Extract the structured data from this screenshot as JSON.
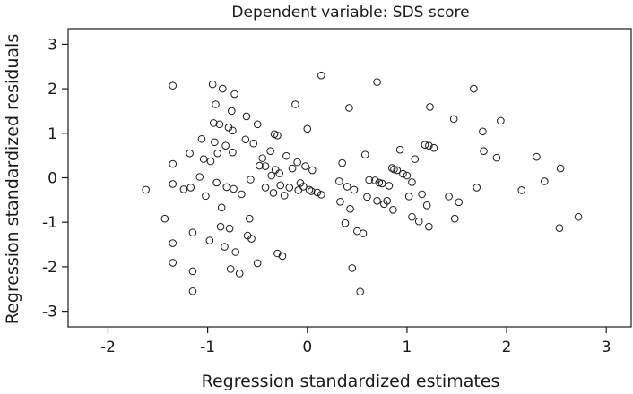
{
  "chart_data": {
    "type": "scatter",
    "title": "Dependent variable: SDS score",
    "xlabel": "Regression standardized estimates",
    "ylabel": "Regression standardized residuals",
    "xlim": [
      -2.4,
      3.25
    ],
    "ylim": [
      -3.35,
      3.35
    ],
    "xticks": [
      -2,
      -1,
      0,
      1,
      2,
      3
    ],
    "yticks": [
      -3,
      -2,
      -1,
      0,
      1,
      2,
      3
    ],
    "grid": false,
    "marker": "open-circle",
    "points": [
      [
        -1.62,
        -0.27
      ],
      [
        -1.43,
        -0.92
      ],
      [
        -1.35,
        2.07
      ],
      [
        -1.35,
        0.31
      ],
      [
        -1.35,
        -0.14
      ],
      [
        -1.35,
        -1.47
      ],
      [
        -1.35,
        -1.91
      ],
      [
        -1.24,
        -0.26
      ],
      [
        -1.18,
        0.55
      ],
      [
        -1.17,
        -0.22
      ],
      [
        -1.15,
        -1.23
      ],
      [
        -1.15,
        -2.1
      ],
      [
        -1.15,
        -2.55
      ],
      [
        -1.08,
        0.02
      ],
      [
        -1.06,
        0.87
      ],
      [
        -1.04,
        0.42
      ],
      [
        -1.02,
        -0.41
      ],
      [
        -0.98,
        -1.41
      ],
      [
        -0.97,
        0.37
      ],
      [
        -0.95,
        2.1
      ],
      [
        -0.94,
        1.23
      ],
      [
        -0.93,
        0.8
      ],
      [
        -0.92,
        1.65
      ],
      [
        -0.91,
        -0.11
      ],
      [
        -0.9,
        0.55
      ],
      [
        -0.88,
        1.2
      ],
      [
        -0.87,
        -1.1
      ],
      [
        -0.86,
        -0.67
      ],
      [
        -0.85,
        2.0
      ],
      [
        -0.83,
        -1.55
      ],
      [
        -0.82,
        0.72
      ],
      [
        -0.81,
        -0.21
      ],
      [
        -0.79,
        1.13
      ],
      [
        -0.78,
        -1.14
      ],
      [
        -0.77,
        -2.05
      ],
      [
        -0.76,
        1.5
      ],
      [
        -0.75,
        1.06
      ],
      [
        -0.75,
        0.57
      ],
      [
        -0.74,
        -0.25
      ],
      [
        -0.73,
        1.88
      ],
      [
        -0.72,
        -1.67
      ],
      [
        -0.68,
        -2.15
      ],
      [
        -0.66,
        -0.37
      ],
      [
        -0.62,
        0.86
      ],
      [
        -0.61,
        1.38
      ],
      [
        -0.6,
        -1.3
      ],
      [
        -0.58,
        -0.92
      ],
      [
        -0.57,
        -0.04
      ],
      [
        -0.56,
        -1.37
      ],
      [
        -0.54,
        0.77
      ],
      [
        -0.5,
        1.2
      ],
      [
        -0.5,
        -1.92
      ],
      [
        -0.48,
        0.27
      ],
      [
        -0.45,
        0.44
      ],
      [
        -0.42,
        0.26
      ],
      [
        -0.42,
        -0.22
      ],
      [
        -0.37,
        0.6
      ],
      [
        -0.36,
        0.05
      ],
      [
        -0.34,
        -0.34
      ],
      [
        -0.33,
        0.98
      ],
      [
        -0.32,
        0.18
      ],
      [
        -0.3,
        -1.7
      ],
      [
        -0.3,
        0.95
      ],
      [
        -0.28,
        0.1
      ],
      [
        -0.27,
        -0.17
      ],
      [
        -0.25,
        -1.76
      ],
      [
        -0.23,
        -0.4
      ],
      [
        -0.21,
        0.49
      ],
      [
        -0.18,
        -0.22
      ],
      [
        -0.15,
        0.21
      ],
      [
        -0.12,
        1.65
      ],
      [
        -0.1,
        0.35
      ],
      [
        -0.09,
        -0.28
      ],
      [
        -0.07,
        -0.12
      ],
      [
        -0.04,
        -0.2
      ],
      [
        -0.02,
        0.26
      ],
      [
        0.0,
        1.1
      ],
      [
        0.02,
        -0.27
      ],
      [
        0.04,
        -0.3
      ],
      [
        0.05,
        0.17
      ],
      [
        0.1,
        -0.33
      ],
      [
        0.14,
        -0.38
      ],
      [
        0.14,
        2.3
      ],
      [
        0.32,
        -0.08
      ],
      [
        0.33,
        -0.54
      ],
      [
        0.35,
        0.33
      ],
      [
        0.38,
        -1.02
      ],
      [
        0.4,
        -0.2
      ],
      [
        0.42,
        1.57
      ],
      [
        0.43,
        -0.7
      ],
      [
        0.45,
        -2.03
      ],
      [
        0.47,
        -0.27
      ],
      [
        0.5,
        -1.2
      ],
      [
        0.53,
        -2.56
      ],
      [
        0.56,
        -1.25
      ],
      [
        0.58,
        0.52
      ],
      [
        0.6,
        -0.43
      ],
      [
        0.62,
        -0.05
      ],
      [
        0.68,
        -0.06
      ],
      [
        0.7,
        -0.52
      ],
      [
        0.7,
        2.15
      ],
      [
        0.72,
        -0.11
      ],
      [
        0.75,
        -0.13
      ],
      [
        0.77,
        -0.59
      ],
      [
        0.8,
        -0.52
      ],
      [
        0.82,
        -0.18
      ],
      [
        0.85,
        0.22
      ],
      [
        0.86,
        -0.72
      ],
      [
        0.87,
        0.19
      ],
      [
        0.9,
        0.17
      ],
      [
        0.93,
        0.63
      ],
      [
        0.96,
        0.09
      ],
      [
        1.0,
        0.05
      ],
      [
        1.02,
        -0.42
      ],
      [
        1.05,
        -0.1
      ],
      [
        1.05,
        -0.88
      ],
      [
        1.08,
        0.42
      ],
      [
        1.12,
        -0.98
      ],
      [
        1.15,
        -0.37
      ],
      [
        1.18,
        0.74
      ],
      [
        1.2,
        -0.62
      ],
      [
        1.22,
        -1.1
      ],
      [
        1.22,
        0.72
      ],
      [
        1.23,
        1.59
      ],
      [
        1.27,
        0.67
      ],
      [
        1.42,
        -0.42
      ],
      [
        1.47,
        1.32
      ],
      [
        1.48,
        -0.92
      ],
      [
        1.52,
        -0.55
      ],
      [
        1.67,
        2.0
      ],
      [
        1.7,
        -0.22
      ],
      [
        1.76,
        1.04
      ],
      [
        1.77,
        0.6
      ],
      [
        1.9,
        0.45
      ],
      [
        1.94,
        1.28
      ],
      [
        2.15,
        -0.28
      ],
      [
        2.3,
        0.47
      ],
      [
        2.38,
        -0.08
      ],
      [
        2.53,
        -1.13
      ],
      [
        2.54,
        0.21
      ],
      [
        2.72,
        -0.88
      ]
    ]
  }
}
